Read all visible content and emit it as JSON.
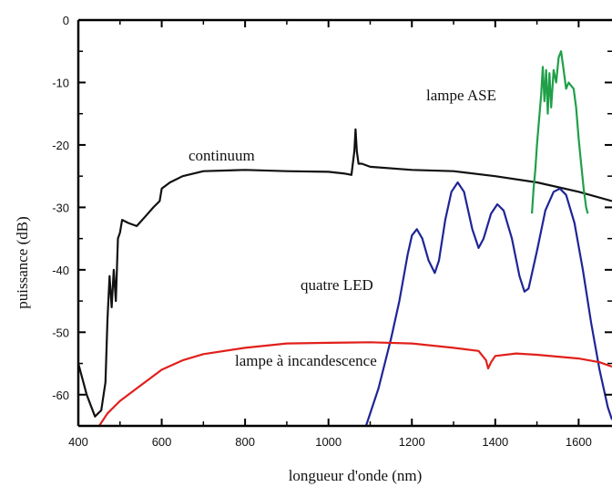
{
  "chart_data": {
    "type": "line",
    "title": "",
    "xlabel": "longueur d'onde (nm)",
    "ylabel": "puissance (dB)",
    "xlim": [
      400,
      1680
    ],
    "ylim": [
      -65,
      0
    ],
    "x_ticks": [
      400,
      600,
      800,
      1000,
      1200,
      1400,
      1600
    ],
    "y_ticks": [
      0,
      -10,
      -20,
      -30,
      -40,
      -50,
      -60
    ],
    "grid": false,
    "legend": "none",
    "annotations": [
      {
        "text": "continuum",
        "series": "continuum"
      },
      {
        "text": "lampe ASE",
        "series": "lampe ASE"
      },
      {
        "text": "quatre LED",
        "series": "quatre LED"
      },
      {
        "text": "lampe à incandescence",
        "series": "lampe à incandescence"
      }
    ],
    "series": [
      {
        "name": "continuum",
        "color": "#111111",
        "points": [
          [
            400,
            -55
          ],
          [
            420,
            -60
          ],
          [
            440,
            -63.5
          ],
          [
            455,
            -62.5
          ],
          [
            465,
            -58
          ],
          [
            470,
            -48
          ],
          [
            475,
            -41
          ],
          [
            480,
            -46
          ],
          [
            485,
            -40
          ],
          [
            490,
            -45
          ],
          [
            495,
            -35
          ],
          [
            500,
            -34
          ],
          [
            505,
            -32
          ],
          [
            520,
            -32.5
          ],
          [
            540,
            -33
          ],
          [
            560,
            -31.5
          ],
          [
            580,
            -30
          ],
          [
            595,
            -29
          ],
          [
            600,
            -27
          ],
          [
            620,
            -26
          ],
          [
            650,
            -25
          ],
          [
            700,
            -24.2
          ],
          [
            800,
            -24
          ],
          [
            900,
            -24.2
          ],
          [
            1000,
            -24.3
          ],
          [
            1040,
            -24.6
          ],
          [
            1055,
            -24.8
          ],
          [
            1062,
            -21
          ],
          [
            1065,
            -17.5
          ],
          [
            1068,
            -21
          ],
          [
            1072,
            -23
          ],
          [
            1080,
            -23
          ],
          [
            1100,
            -23.5
          ],
          [
            1200,
            -24
          ],
          [
            1300,
            -24.2
          ],
          [
            1400,
            -25
          ],
          [
            1500,
            -26
          ],
          [
            1600,
            -27.5
          ],
          [
            1680,
            -29
          ]
        ]
      },
      {
        "name": "lampe ASE",
        "color": "#1fa049",
        "points": [
          [
            1488,
            -31
          ],
          [
            1492,
            -27
          ],
          [
            1496,
            -24
          ],
          [
            1500,
            -20
          ],
          [
            1505,
            -16
          ],
          [
            1510,
            -12
          ],
          [
            1514,
            -7.5
          ],
          [
            1518,
            -13
          ],
          [
            1522,
            -8
          ],
          [
            1526,
            -15
          ],
          [
            1530,
            -8.5
          ],
          [
            1534,
            -14
          ],
          [
            1540,
            -8
          ],
          [
            1546,
            -10
          ],
          [
            1552,
            -6
          ],
          [
            1558,
            -5
          ],
          [
            1564,
            -8
          ],
          [
            1570,
            -11
          ],
          [
            1576,
            -10
          ],
          [
            1582,
            -10.5
          ],
          [
            1588,
            -11
          ],
          [
            1594,
            -14
          ],
          [
            1600,
            -19
          ],
          [
            1606,
            -23
          ],
          [
            1612,
            -27
          ],
          [
            1618,
            -30
          ],
          [
            1622,
            -31
          ]
        ]
      },
      {
        "name": "quatre LED",
        "color": "#1f2596",
        "points": [
          [
            1090,
            -65
          ],
          [
            1120,
            -59
          ],
          [
            1150,
            -51
          ],
          [
            1170,
            -45
          ],
          [
            1190,
            -37.5
          ],
          [
            1200,
            -34.5
          ],
          [
            1212,
            -33.5
          ],
          [
            1225,
            -35
          ],
          [
            1240,
            -38.5
          ],
          [
            1255,
            -40.5
          ],
          [
            1265,
            -38.5
          ],
          [
            1280,
            -32
          ],
          [
            1295,
            -27.5
          ],
          [
            1310,
            -26
          ],
          [
            1325,
            -27.5
          ],
          [
            1345,
            -33.5
          ],
          [
            1360,
            -36.5
          ],
          [
            1372,
            -35
          ],
          [
            1390,
            -31
          ],
          [
            1405,
            -29.5
          ],
          [
            1420,
            -30.5
          ],
          [
            1440,
            -35
          ],
          [
            1458,
            -41
          ],
          [
            1470,
            -43.5
          ],
          [
            1480,
            -43
          ],
          [
            1500,
            -37
          ],
          [
            1520,
            -30.5
          ],
          [
            1540,
            -27.5
          ],
          [
            1555,
            -27
          ],
          [
            1570,
            -28
          ],
          [
            1590,
            -32.5
          ],
          [
            1610,
            -40
          ],
          [
            1630,
            -48.5
          ],
          [
            1650,
            -56
          ],
          [
            1670,
            -62
          ],
          [
            1680,
            -64
          ]
        ]
      },
      {
        "name": "lampe à incandescence",
        "color": "#e0201b",
        "points": [
          [
            450,
            -65
          ],
          [
            470,
            -63
          ],
          [
            500,
            -61
          ],
          [
            540,
            -59
          ],
          [
            580,
            -57
          ],
          [
            600,
            -56
          ],
          [
            650,
            -54.5
          ],
          [
            700,
            -53.5
          ],
          [
            800,
            -52.5
          ],
          [
            900,
            -51.8
          ],
          [
            1000,
            -51.7
          ],
          [
            1100,
            -51.6
          ],
          [
            1200,
            -51.8
          ],
          [
            1300,
            -52.5
          ],
          [
            1360,
            -53
          ],
          [
            1378,
            -54.5
          ],
          [
            1383,
            -55.8
          ],
          [
            1390,
            -54.8
          ],
          [
            1400,
            -53.8
          ],
          [
            1450,
            -53.4
          ],
          [
            1500,
            -53.6
          ],
          [
            1600,
            -54.2
          ],
          [
            1650,
            -54.8
          ],
          [
            1680,
            -55.5
          ]
        ]
      }
    ]
  }
}
